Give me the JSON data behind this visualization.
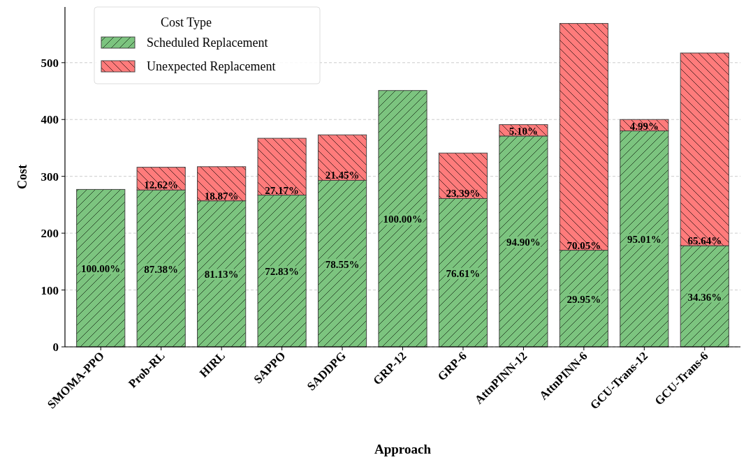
{
  "chart_data": {
    "type": "bar",
    "stacked": true,
    "xlabel": "Approach",
    "ylabel": "Cost",
    "legend_title": "Cost Type",
    "legend": "top left",
    "grid": "y",
    "categories": [
      "SMOMA-PPO",
      "Prob-RL",
      "HIRL",
      "SAPPO",
      "SADDPG",
      "GRP-12",
      "GRP-6",
      "AttnPINN-12",
      "AttnPINN-6",
      "GCU-Trans-12",
      "GCU-Trans-6"
    ],
    "series": [
      {
        "name": "Scheduled Replacement",
        "color": "#7cc47f",
        "values": [
          277,
          276,
          257,
          267,
          293,
          451,
          261,
          371,
          170,
          380,
          178
        ]
      },
      {
        "name": "Unexpected Replacement",
        "color": "#ff7b7b",
        "values": [
          0,
          40,
          60,
          100,
          80,
          0,
          80,
          20,
          399,
          20,
          339
        ]
      }
    ],
    "annotations": [
      "100.00%",
      "87.38%",
      "81.13%",
      "72.83%",
      "78.55%",
      "100.00%",
      "76.61%",
      "94.90%",
      "29.95%",
      "95.01%",
      "34.36%",
      "12.62%",
      "18.87%",
      "27.17%",
      "21.45%",
      "23.39%",
      "5.10%",
      "70.05%",
      "4.99%",
      "65.64%"
    ],
    "ylim": [
      0,
      598
    ],
    "yticks": [
      0,
      100,
      200,
      300,
      400,
      500
    ]
  }
}
